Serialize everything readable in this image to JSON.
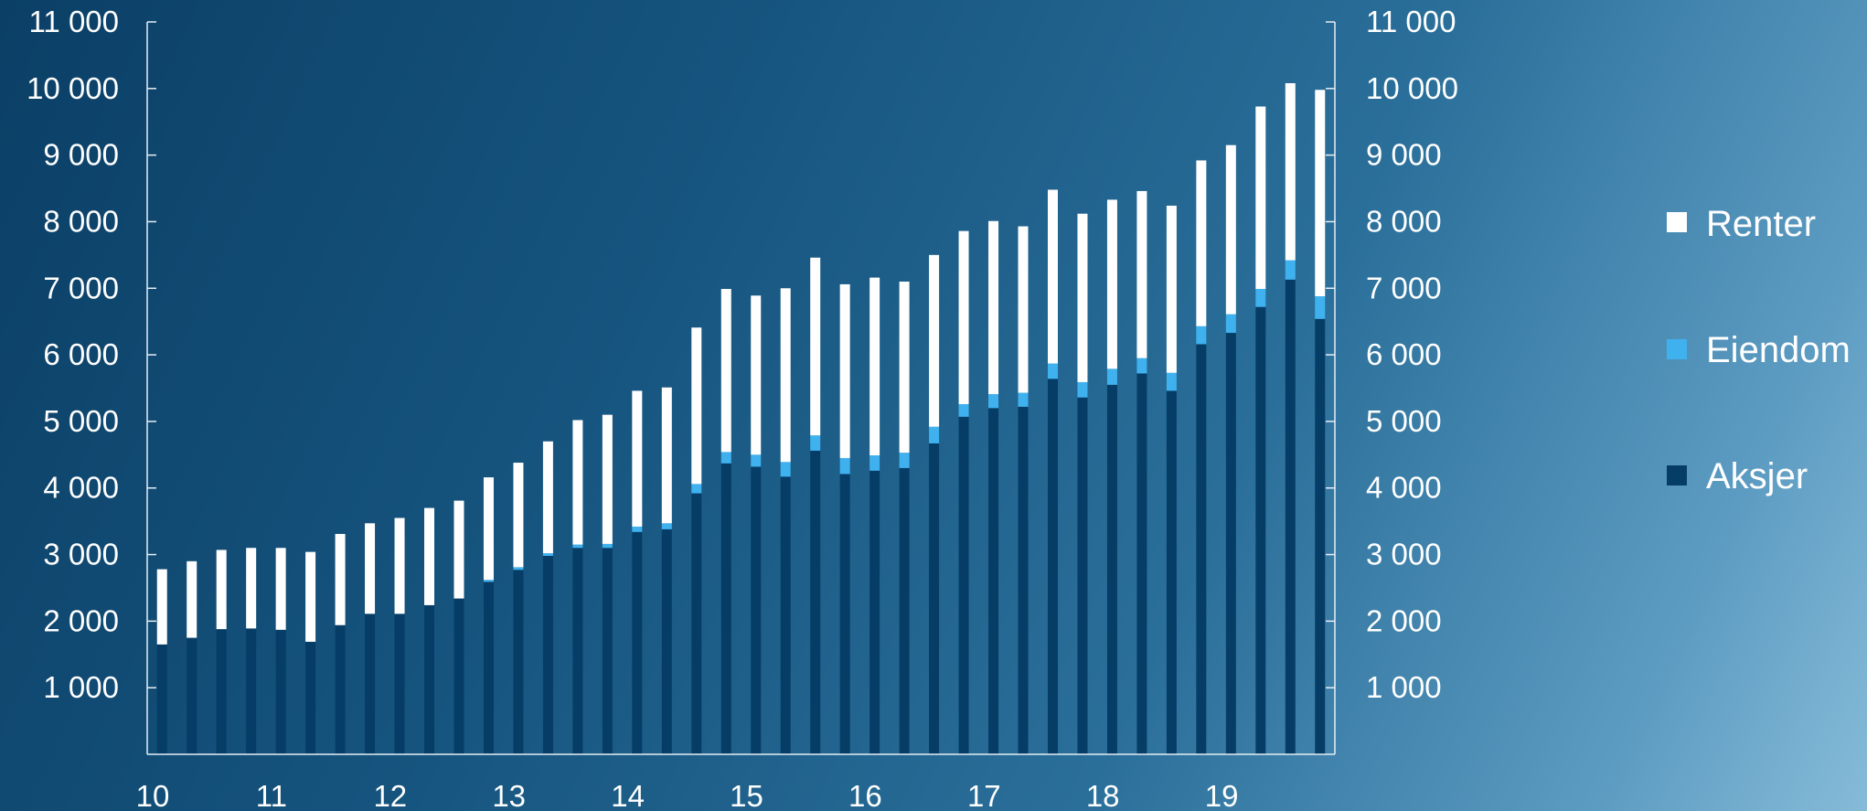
{
  "chart_data": {
    "type": "bar",
    "stacked": true,
    "x_tick_labels": [
      "10",
      "11",
      "12",
      "13",
      "14",
      "15",
      "16",
      "17",
      "18",
      "19"
    ],
    "y_tick_labels": [
      "1 000",
      "2 000",
      "3 000",
      "4 000",
      "5 000",
      "6 000",
      "7 000",
      "8 000",
      "9 000",
      "10 000",
      "11 000"
    ],
    "ylim": [
      0,
      11000
    ],
    "y_ticks": [
      1000,
      2000,
      3000,
      4000,
      5000,
      6000,
      7000,
      8000,
      9000,
      10000,
      11000
    ],
    "grid": false,
    "legend_position": "right",
    "series": [
      {
        "name": "Aksjer",
        "color": "#063d66",
        "values": [
          1650,
          1750,
          1880,
          1890,
          1870,
          1690,
          1940,
          2110,
          2110,
          2240,
          2340,
          2590,
          2770,
          2980,
          3100,
          3100,
          3340,
          3380,
          3920,
          4370,
          4320,
          4170,
          4560,
          4210,
          4260,
          4300,
          4670,
          5070,
          5200,
          5220,
          5640,
          5360,
          5550,
          5720,
          5460,
          6160,
          6330,
          6720,
          7130,
          6540
        ]
      },
      {
        "name": "Eiendom",
        "color": "#3fb1ee",
        "values": [
          0,
          0,
          0,
          0,
          0,
          0,
          0,
          0,
          0,
          0,
          0,
          30,
          40,
          40,
          50,
          60,
          80,
          90,
          140,
          170,
          180,
          220,
          230,
          240,
          230,
          230,
          250,
          190,
          210,
          210,
          230,
          230,
          240,
          230,
          270,
          270,
          280,
          270,
          290,
          340
        ]
      },
      {
        "name": "Renter",
        "color": "#ffffff",
        "values": [
          1130,
          1150,
          1190,
          1210,
          1230,
          1350,
          1370,
          1360,
          1440,
          1460,
          1470,
          1540,
          1570,
          1680,
          1870,
          1940,
          2040,
          2040,
          2350,
          2450,
          2390,
          2610,
          2670,
          2610,
          2670,
          2570,
          2580,
          2600,
          2600,
          2500,
          2610,
          2530,
          2540,
          2510,
          2510,
          2490,
          2540,
          2740,
          2660,
          3100
        ]
      }
    ]
  },
  "legend": [
    {
      "label": "Renter",
      "color": "#ffffff"
    },
    {
      "label": "Eiendom",
      "color": "#3fb1ee"
    },
    {
      "label": "Aksjer",
      "color": "#063d66"
    }
  ]
}
